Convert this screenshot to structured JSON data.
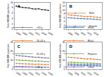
{
  "chart_data": [
    {
      "type": "line",
      "title": "A",
      "y_label": "Rate/100,000 population",
      "x": [
        1996,
        1997,
        1998,
        1999,
        2000,
        2001,
        2002,
        2003,
        2004,
        2005,
        2006
      ],
      "xlim": [
        1995.5,
        2006.5
      ],
      "xticks": [
        1996,
        1998,
        2000,
        2002,
        2004,
        2006
      ],
      "ylim": [
        0,
        10
      ],
      "yticks": [
        0,
        2,
        4,
        6,
        8,
        10
      ],
      "series": [
        {
          "color": "#222222",
          "marker": "circle",
          "values": [
            8.6,
            8.3,
            8.1,
            8.0,
            7.9,
            7.6,
            7.5,
            7.6,
            7.3,
            7.2,
            7.0
          ]
        }
      ]
    },
    {
      "type": "line",
      "title": "B",
      "y_label": "Rate/100,000 population",
      "legend": "upper right",
      "x": [
        1996,
        1997,
        1998,
        1999,
        2000,
        2001,
        2002,
        2003,
        2004,
        2005,
        2006
      ],
      "xlim": [
        1995.5,
        2006.5
      ],
      "xticks": [
        1996,
        1998,
        2000,
        2002,
        2004,
        2006
      ],
      "ylim": [
        0,
        14
      ],
      "yticks": [
        0,
        2,
        4,
        6,
        8,
        10,
        12,
        14
      ],
      "series": [
        {
          "name": "Male",
          "color": "#e07b39",
          "marker": "circle",
          "values": [
            7.5,
            7.3,
            7.1,
            7.0,
            6.9,
            6.7,
            6.6,
            6.7,
            6.4,
            6.3,
            6.1
          ]
        },
        {
          "name": "Female",
          "color": "#4a7ebb",
          "marker": "circle",
          "values": [
            6.0,
            5.9,
            5.7,
            5.6,
            5.5,
            5.4,
            5.3,
            5.4,
            5.2,
            5.1,
            5.0
          ]
        }
      ]
    },
    {
      "type": "line",
      "title": "C",
      "y_label": "Rate/100,000 population",
      "legend": "upper right",
      "x": [
        1996,
        1997,
        1998,
        1999,
        2000,
        2001,
        2002,
        2003,
        2004,
        2005,
        2006
      ],
      "xlim": [
        1995.5,
        2006.5
      ],
      "xticks": [
        1996,
        1998,
        2000,
        2002,
        2004,
        2006
      ],
      "ylim": [
        0,
        30
      ],
      "yticks": [
        0,
        10,
        20,
        30
      ],
      "series": [
        {
          "name": "<18 y",
          "color": "#4a7ebb",
          "marker": "circle",
          "values": [
            3.0,
            2.9,
            2.8,
            2.7,
            2.6,
            2.5,
            2.5,
            2.4,
            2.3,
            2.3,
            2.2
          ]
        },
        {
          "name": "18–44 y",
          "color": "#e07b39",
          "marker": "circle",
          "values": [
            6.5,
            6.3,
            6.2,
            6.0,
            5.9,
            5.8,
            5.6,
            5.7,
            5.5,
            5.4,
            5.3
          ]
        },
        {
          "name": "45–64 y",
          "color": "#70a845",
          "marker": "circle",
          "values": [
            10.5,
            10.2,
            10.0,
            9.8,
            9.6,
            9.3,
            9.1,
            9.2,
            8.9,
            8.7,
            8.5
          ]
        },
        {
          "name": "≥65 y",
          "color": "#8064a2",
          "marker": "circle",
          "values": [
            15.5,
            15.0,
            14.7,
            14.4,
            14.1,
            13.7,
            13.4,
            13.5,
            13.0,
            12.8,
            12.5
          ]
        }
      ]
    },
    {
      "type": "line",
      "title": "D",
      "y_label": "Rate/100,000 population",
      "legend": "upper right",
      "x": [
        1996,
        1997,
        1998,
        1999,
        2000,
        2001,
        2002,
        2003,
        2004,
        2005,
        2006
      ],
      "xlim": [
        1995.5,
        2006.5
      ],
      "xticks": [
        1996,
        1998,
        2000,
        2002,
        2004,
        2006
      ],
      "ylim": [
        0,
        30
      ],
      "yticks": [
        0,
        10,
        20,
        30
      ],
      "series": [
        {
          "name": "White",
          "color": "#4a7ebb",
          "marker": "circle",
          "values": [
            6.0,
            5.8,
            5.7,
            5.6,
            5.5,
            5.3,
            5.2,
            5.3,
            5.1,
            5.0,
            4.9
          ]
        },
        {
          "name": "Black",
          "color": "#e07b39",
          "marker": "circle",
          "values": [
            13.5,
            13.1,
            12.8,
            12.5,
            12.2,
            11.8,
            11.5,
            11.6,
            11.2,
            11.0,
            10.7
          ]
        },
        {
          "name": "Hispanic",
          "color": "#70a845",
          "marker": "circle",
          "values": [
            8.0,
            7.8,
            7.6,
            7.4,
            7.2,
            7.0,
            6.9,
            7.0,
            6.7,
            6.6,
            6.4
          ]
        },
        {
          "name": "Other",
          "color": "#8064a2",
          "marker": "circle",
          "values": [
            4.5,
            4.4,
            4.3,
            4.2,
            4.1,
            4.0,
            3.9,
            3.9,
            3.8,
            3.7,
            3.6
          ]
        }
      ]
    }
  ]
}
